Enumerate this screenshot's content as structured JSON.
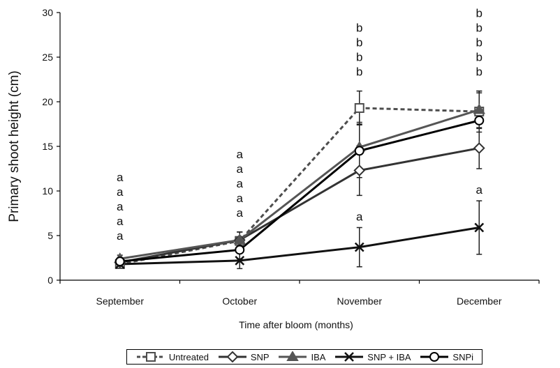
{
  "chart_data": {
    "type": "line",
    "title": "",
    "xlabel": "Time after bloom (months)",
    "ylabel": "Primary shoot height (cm)",
    "categories": [
      "September",
      "October",
      "November",
      "December"
    ],
    "ylim": [
      0,
      30
    ],
    "yticks": [
      "0",
      "5",
      "10",
      "15",
      "20",
      "25",
      "30"
    ],
    "grid": false,
    "legend_position": "bottom",
    "series": [
      {
        "name": "Untreated",
        "marker": "square",
        "dashed": true,
        "color": "#4d4d4d",
        "values": [
          1.8,
          4.4,
          19.3,
          18.9
        ],
        "errors": [
          0.4,
          1.0,
          1.9,
          2.3
        ]
      },
      {
        "name": "SNP",
        "marker": "diamond",
        "dashed": false,
        "color": "#333333",
        "values": [
          2.0,
          4.5,
          12.3,
          14.8
        ],
        "errors": [
          0.4,
          0.9,
          2.8,
          2.3
        ]
      },
      {
        "name": "IBA",
        "marker": "triangle",
        "dashed": false,
        "color": "#555555",
        "values": [
          2.4,
          4.5,
          14.9,
          19.1
        ],
        "errors": [
          0.4,
          0.9,
          2.8,
          2.1
        ]
      },
      {
        "name": "SNP + IBA",
        "marker": "x",
        "dashed": false,
        "color": "#111111",
        "values": [
          1.8,
          2.2,
          3.7,
          5.9
        ],
        "errors": [
          0.4,
          0.9,
          2.2,
          3.0
        ]
      },
      {
        "name": "SNPi",
        "marker": "circle",
        "dashed": false,
        "color": "#000000",
        "values": [
          2.1,
          3.4,
          14.5,
          17.9
        ],
        "errors": [
          0.4,
          1.0,
          3.0,
          3.1
        ]
      }
    ],
    "significance_letters": [
      {
        "category": "September",
        "letters": [
          "a",
          "a",
          "a",
          "a",
          "a"
        ]
      },
      {
        "category": "October",
        "letters": [
          "a",
          "a",
          "a",
          "a",
          "a"
        ]
      },
      {
        "category": "November",
        "letters": [
          "b",
          "b",
          "b",
          "b"
        ],
        "extra": "a"
      },
      {
        "category": "December",
        "letters": [
          "b",
          "b",
          "b",
          "b",
          "b"
        ],
        "extra": "a"
      }
    ]
  }
}
